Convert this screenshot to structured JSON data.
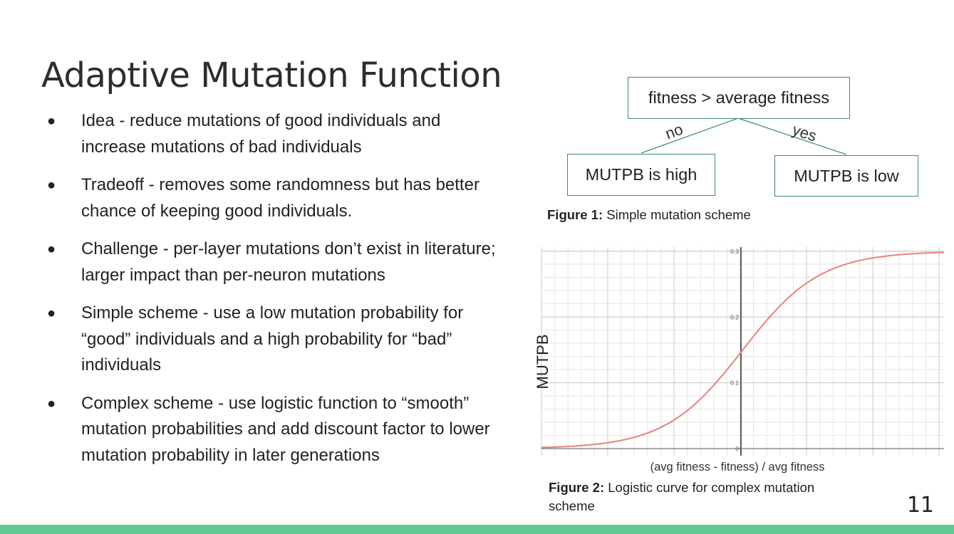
{
  "slide": {
    "title": "Adaptive Mutation Function",
    "page_number": "11",
    "bullet_char": "●",
    "accent_color": "#63c994",
    "bullets": [
      {
        "text": "Idea - reduce mutations of good individuals and increase mutations of bad individuals"
      },
      {
        "text": "Tradeoff - removes some randomness but has better chance of keeping good individuals."
      },
      {
        "text": "Challenge - per-layer mutations don’t exist in literature; larger impact than per-neuron mutations"
      },
      {
        "text": "Simple scheme - use a low mutation probability for “good” individuals and a high probability for “bad” individuals"
      },
      {
        "text": "Complex scheme - use logistic function to “smooth” mutation probabilities and add discount factor to lower mutation probability in later generations"
      }
    ]
  },
  "figure1": {
    "root_label": "fitness > average fitness",
    "edge_no": "no",
    "edge_yes": "yes",
    "left_leaf": "MUTPB is high",
    "right_leaf": "MUTPB is low",
    "caption_bold": "Figure 1:",
    "caption_text": " Simple mutation scheme",
    "border_color": "#3d8d6a"
  },
  "figure2": {
    "caption_bold": "Figure 2:",
    "caption_text": " Logistic curve for complex mutation scheme"
  },
  "chart_data": {
    "type": "line",
    "xlabel": "(avg fitness - fitness) / avg fitness",
    "ylabel": "MUTPB",
    "ylim": [
      0,
      0.3
    ],
    "yticks": [
      "0",
      "0.1",
      "0.2",
      "0.3"
    ],
    "grid": true,
    "curve_color": "#e8827a",
    "series": [
      {
        "x": [
          -1.0,
          -0.8,
          -0.6,
          -0.4,
          -0.2,
          0.0,
          0.2,
          0.4,
          0.6,
          0.8,
          1.0
        ],
        "values": [
          0.002,
          0.006,
          0.017,
          0.045,
          0.09,
          0.15,
          0.21,
          0.255,
          0.283,
          0.294,
          0.298
        ]
      }
    ]
  }
}
